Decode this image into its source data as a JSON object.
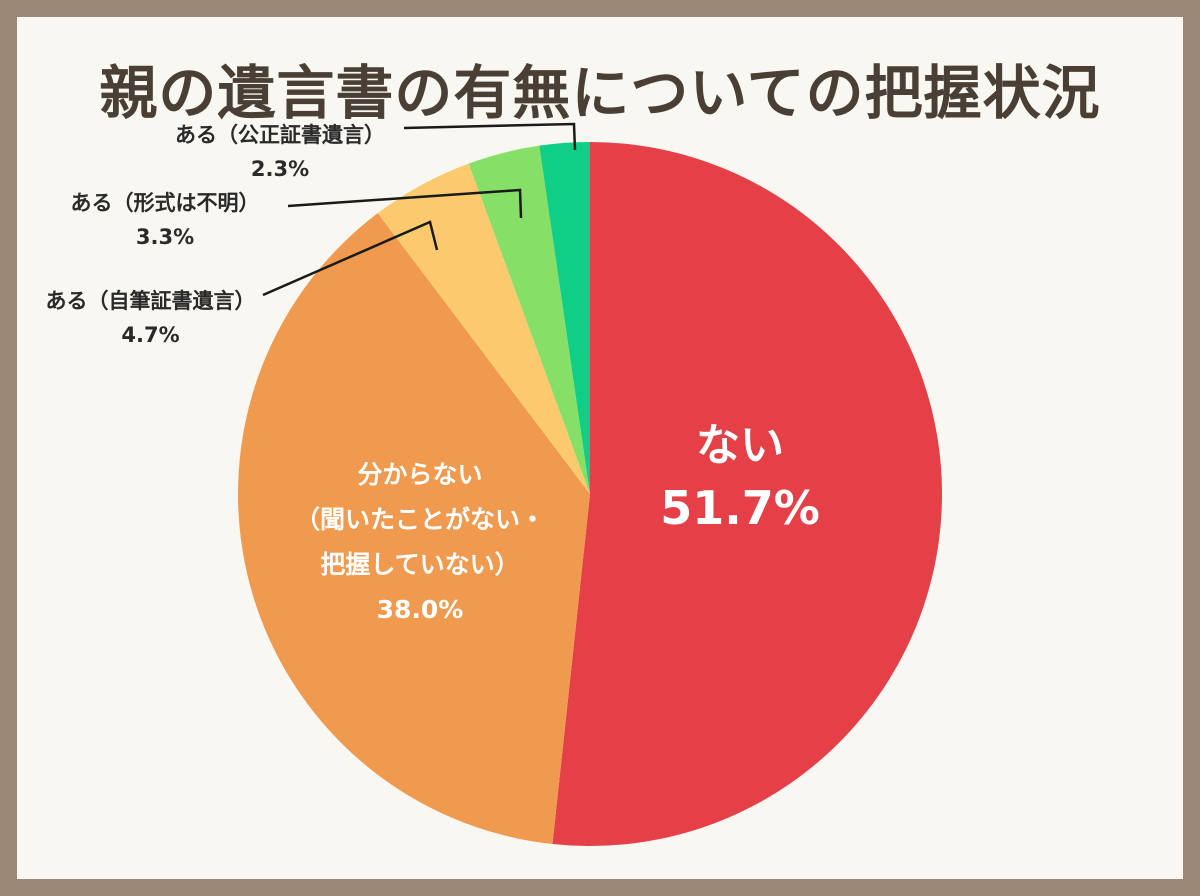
{
  "title": "親の遺言書の有無についての把握状況",
  "chart_data": {
    "type": "pie",
    "title": "親の遺言書の有無についての把握状況",
    "categories": [
      "ない",
      "分からない（聞いたことがない・把握していない）",
      "ある（自筆証書遺言）",
      "ある（形式は不明）",
      "ある（公正証書遺言）"
    ],
    "values": [
      51.7,
      38.0,
      4.7,
      3.3,
      2.3
    ],
    "colors": [
      "#e54047",
      "#ef9a4f",
      "#fbca6e",
      "#86e067",
      "#0fcf86"
    ],
    "start_angle": "12 o'clock, clockwise"
  },
  "labels": {
    "nai": {
      "name": "ない",
      "value": "51.7%"
    },
    "wakaranai": {
      "line1": "分からない",
      "line2": "（聞いたことがない・",
      "line3": "把握していない）",
      "value": "38.0%"
    },
    "jihitsu": {
      "name": "ある（自筆証書遺言）",
      "value": "4.7%"
    },
    "fumei": {
      "name": "ある（形式は不明）",
      "value": "3.3%"
    },
    "kosei": {
      "name": "ある（公正証書遺言）",
      "value": "2.3%"
    }
  }
}
